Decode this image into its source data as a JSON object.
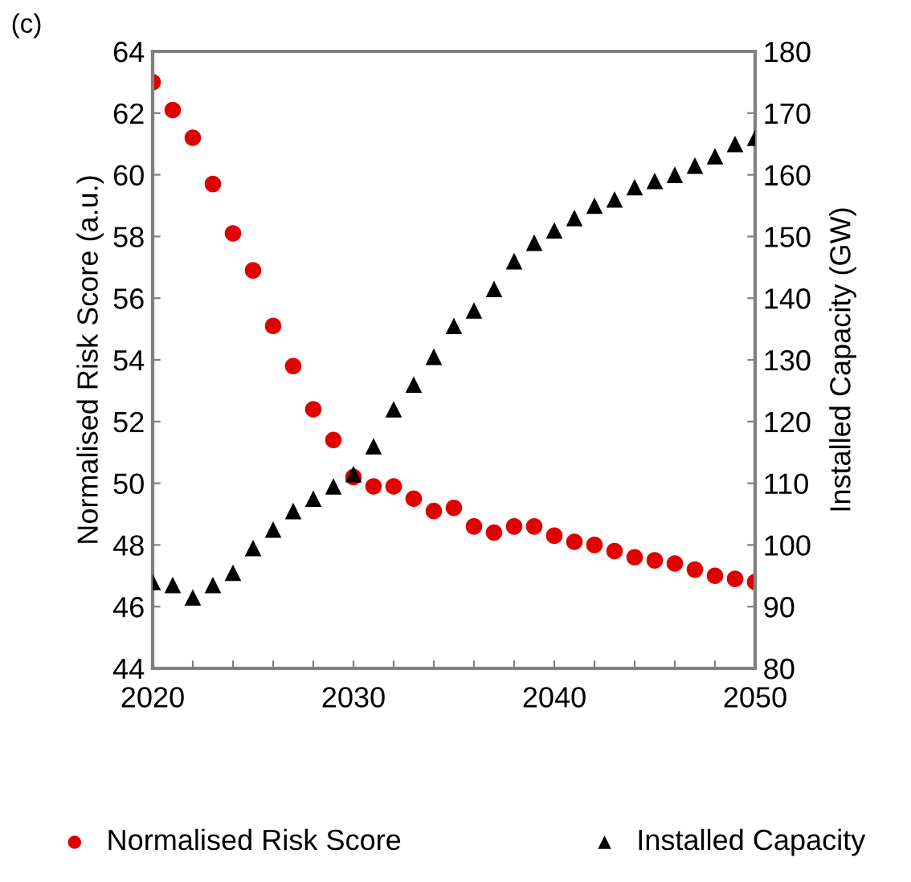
{
  "chart_data": {
    "type": "scatter",
    "annotations": [
      "(c)"
    ],
    "ylabel": "Normalised Risk Score (a.u.)",
    "y2label": "Installed Capacity (GW)",
    "x": [
      2020,
      2021,
      2022,
      2023,
      2024,
      2025,
      2026,
      2027,
      2028,
      2029,
      2030,
      2031,
      2032,
      2033,
      2034,
      2035,
      2036,
      2037,
      2038,
      2039,
      2040,
      2041,
      2042,
      2043,
      2044,
      2045,
      2046,
      2047,
      2048,
      2049,
      2050
    ],
    "series": [
      {
        "name": "Normalised Risk Score",
        "color": "#e00000",
        "marker": "circle",
        "values": [
          63.0,
          62.1,
          61.2,
          59.7,
          58.1,
          56.9,
          55.1,
          53.8,
          52.4,
          51.4,
          50.2,
          49.9,
          49.9,
          49.5,
          49.1,
          49.2,
          48.6,
          48.4,
          48.6,
          48.6,
          48.3,
          48.1,
          48.0,
          47.8,
          47.6,
          47.5,
          47.4,
          47.2,
          47.0,
          46.9,
          46.8
        ]
      },
      {
        "name": "Installed Capacity",
        "color": "#000000",
        "marker": "triangle",
        "axis": "y2",
        "values": [
          94,
          93.5,
          91.5,
          93.5,
          95.5,
          99.5,
          102.5,
          105.5,
          107.5,
          109.5,
          111.5,
          116,
          122,
          126,
          130.5,
          135.5,
          138,
          141.5,
          146,
          149,
          151,
          153,
          155,
          156,
          158,
          159,
          160,
          161.5,
          163,
          165,
          166
        ]
      }
    ],
    "xlim": [
      2020,
      2050
    ],
    "xticks": [
      2020,
      {
        "value": 2022,
        "label": null
      },
      {
        "value": 2024,
        "label": null
      },
      {
        "value": 2026,
        "label": null
      },
      {
        "value": 2028,
        "label": null
      },
      2030,
      {
        "value": 2032,
        "label": null
      },
      {
        "value": 2034,
        "label": null
      },
      {
        "value": 2036,
        "label": null
      },
      {
        "value": 2038,
        "label": null
      },
      2040,
      {
        "value": 2042,
        "label": null
      },
      {
        "value": 2044,
        "label": null
      },
      {
        "value": 2046,
        "label": null
      },
      {
        "value": 2048,
        "label": null
      },
      2050
    ],
    "ylim": [
      44,
      64
    ],
    "yticks": [
      44,
      46,
      48,
      50,
      52,
      54,
      56,
      58,
      60,
      62,
      64
    ],
    "y2lim": [
      80,
      180
    ],
    "y2ticks": [
      80,
      90,
      100,
      110,
      120,
      130,
      140,
      150,
      160,
      170,
      180
    ],
    "grid": false,
    "legend": "bottom"
  }
}
